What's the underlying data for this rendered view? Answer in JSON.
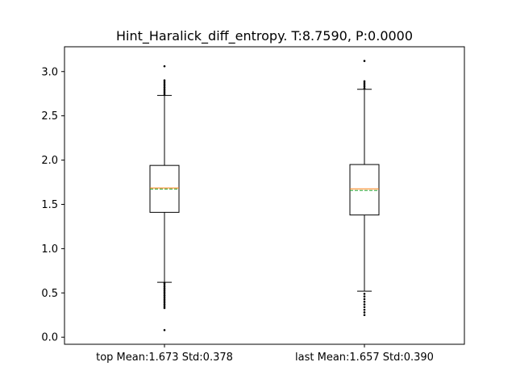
{
  "chart_data": {
    "type": "box",
    "title": "Hint_Haralick_diff_entropy. T:8.7590, P:0.0000",
    "xlabel": "",
    "ylabel": "",
    "ylim": [
      -0.08,
      3.28
    ],
    "yticks": [
      0.0,
      0.5,
      1.0,
      1.5,
      2.0,
      2.5,
      3.0
    ],
    "ytick_labels": [
      "0.0",
      "0.5",
      "1.0",
      "1.5",
      "2.0",
      "2.5",
      "3.0"
    ],
    "grid": false,
    "legend": "none",
    "colors": {
      "median": "#ff7f0e",
      "mean": "#2ca02c",
      "box": "#000000"
    },
    "categories": [
      "top Mean:1.673 Std:0.378",
      "last Mean:1.657 Std:0.390"
    ],
    "boxes": [
      {
        "label": "top Mean:1.673 Std:0.378",
        "whisker_low": 0.62,
        "q1": 1.41,
        "median": 1.685,
        "mean": 1.673,
        "q3": 1.94,
        "whisker_high": 2.73,
        "outliers_low": [
          0.08,
          0.33,
          0.35,
          0.37,
          0.39,
          0.41,
          0.43,
          0.45,
          0.47,
          0.49,
          0.51,
          0.53,
          0.55,
          0.57,
          0.59,
          0.61
        ],
        "outliers_high": [
          2.74,
          2.76,
          2.78,
          2.8,
          2.82,
          2.84,
          2.86,
          2.88,
          2.9,
          3.06
        ]
      },
      {
        "label": "last Mean:1.657 Std:0.390",
        "whisker_low": 0.52,
        "q1": 1.38,
        "median": 1.675,
        "mean": 1.657,
        "q3": 1.95,
        "whisker_high": 2.8,
        "outliers_low": [
          0.25,
          0.28,
          0.31,
          0.34,
          0.37,
          0.4,
          0.43,
          0.46,
          0.49
        ],
        "outliers_high": [
          2.81,
          2.83,
          2.85,
          2.87,
          2.89,
          3.12
        ]
      }
    ]
  }
}
